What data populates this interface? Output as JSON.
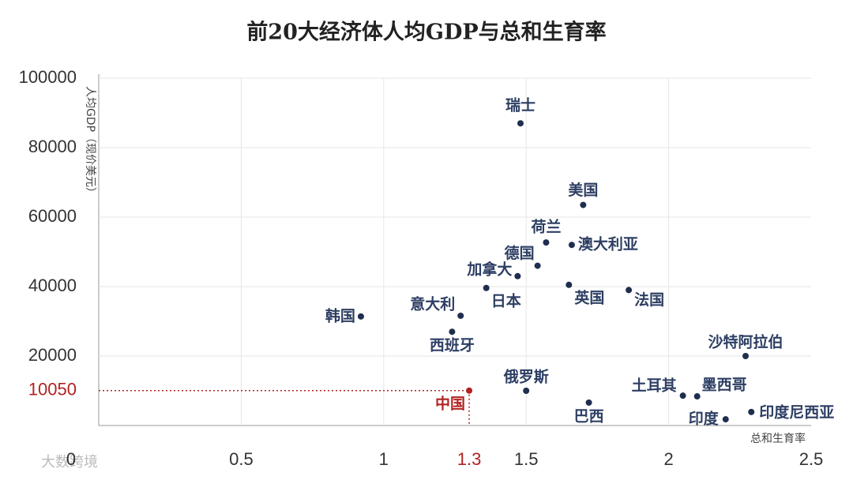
{
  "chart_data": {
    "type": "scatter",
    "title": "前20大经济体人均GDP与总和生育率",
    "x_label": "总和生育率",
    "y_label": "人均GDP（现价美元）",
    "xlim": [
      0,
      2.5
    ],
    "ylim": [
      0,
      100000
    ],
    "xticks": [
      0,
      0.5,
      1,
      1.5,
      2,
      2.5
    ],
    "yticks": [
      20000,
      40000,
      60000,
      80000,
      100000
    ],
    "grid": true,
    "color": "#1f2d4f",
    "points": [
      {
        "label": "瑞士",
        "x": 1.48,
        "y": 87000
      },
      {
        "label": "美国",
        "x": 1.7,
        "y": 63500
      },
      {
        "label": "荷兰",
        "x": 1.57,
        "y": 52700
      },
      {
        "label": "澳大利亚",
        "x": 1.66,
        "y": 52000
      },
      {
        "label": "德国",
        "x": 1.54,
        "y": 46000
      },
      {
        "label": "加拿大",
        "x": 1.47,
        "y": 43000
      },
      {
        "label": "日本",
        "x": 1.36,
        "y": 39600
      },
      {
        "label": "英国",
        "x": 1.65,
        "y": 40500
      },
      {
        "label": "法国",
        "x": 1.86,
        "y": 39000
      },
      {
        "label": "韩国",
        "x": 0.92,
        "y": 31400
      },
      {
        "label": "意大利",
        "x": 1.27,
        "y": 31600
      },
      {
        "label": "西班牙",
        "x": 1.24,
        "y": 27000
      },
      {
        "label": "沙特阿拉伯",
        "x": 2.27,
        "y": 20000
      },
      {
        "label": "俄罗斯",
        "x": 1.5,
        "y": 10000
      },
      {
        "label": "中国",
        "x": 1.3,
        "y": 10050,
        "color": "#b22222"
      },
      {
        "label": "巴西",
        "x": 1.72,
        "y": 6600
      },
      {
        "label": "土耳其",
        "x": 2.05,
        "y": 8600
      },
      {
        "label": "墨西哥",
        "x": 2.1,
        "y": 8400
      },
      {
        "label": "印度",
        "x": 2.2,
        "y": 1800
      },
      {
        "label": "印度尼西亚",
        "x": 2.29,
        "y": 3900
      }
    ],
    "reference": {
      "x": 1.3,
      "y": 10050,
      "color": "#b22222"
    },
    "watermark": "大数跨境"
  }
}
